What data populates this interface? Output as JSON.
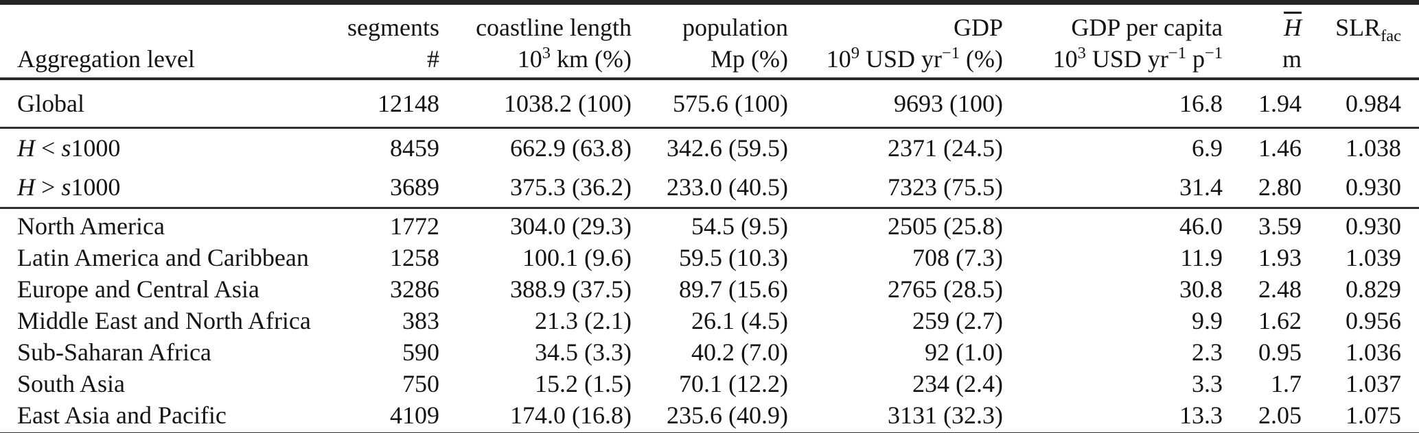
{
  "table": {
    "title": "Coastal aggregation statistics table",
    "header": {
      "top": [
        "",
        "segments",
        "coastline length",
        "population",
        "GDP",
        "GDP per capita",
        "<span class='ov'><i>H</i></span>",
        "SLR<sub>fac</sub>"
      ],
      "bottom": [
        "Aggregation level",
        "#",
        "10<sup>3</sup> km (%)",
        "Mp (%)",
        "10<sup>9</sup> USD yr<sup>−1</sup> (%)",
        "10<sup>3</sup> USD yr<sup>−1</sup> p<sup>−1</sup>",
        "m",
        ""
      ]
    },
    "columns": [
      "Aggregation level",
      "segments #",
      "coastline length 10^3 km (%)",
      "population Mp (%)",
      "GDP 10^9 USD yr^-1 (%)",
      "GDP per capita 10^3 USD yr^-1 p^-1",
      "mean elevation H (m)",
      "SLR factor"
    ],
    "sections": [
      {
        "name": "global",
        "rows": [
          {
            "label": "Global",
            "values": [
              "12148",
              "1038.2 (100)",
              "575.6 (100)",
              "9693 (100)",
              "16.8",
              "1.94",
              "0.984"
            ]
          }
        ]
      },
      {
        "name": "elevation-split",
        "rows": [
          {
            "label": "H < s1000",
            "label_html": "<i>H</i> &lt; <i>s</i>1000",
            "values": [
              "8459",
              "662.9 (63.8)",
              "342.6 (59.5)",
              "2371 (24.5)",
              "6.9",
              "1.46",
              "1.038"
            ]
          },
          {
            "label": "H > s1000",
            "label_html": "<i>H</i> &gt; <i>s</i>1000",
            "values": [
              "3689",
              "375.3 (36.2)",
              "233.0 (40.5)",
              "7323 (75.5)",
              "31.4",
              "2.80",
              "0.930"
            ]
          }
        ]
      },
      {
        "name": "regions",
        "rows": [
          {
            "label": "North America",
            "values": [
              "1772",
              "304.0 (29.3)",
              "54.5 (9.5)",
              "2505 (25.8)",
              "46.0",
              "3.59",
              "0.930"
            ]
          },
          {
            "label": "Latin America and Caribbean",
            "values": [
              "1258",
              "100.1 (9.6)",
              "59.5 (10.3)",
              "708 (7.3)",
              "11.9",
              "1.93",
              "1.039"
            ]
          },
          {
            "label": "Europe and Central Asia",
            "values": [
              "3286",
              "388.9 (37.5)",
              "89.7 (15.6)",
              "2765 (28.5)",
              "30.8",
              "2.48",
              "0.829"
            ]
          },
          {
            "label": "Middle East and North Africa",
            "values": [
              "383",
              "21.3 (2.1)",
              "26.1 (4.5)",
              "259 (2.7)",
              "9.9",
              "1.62",
              "0.956"
            ]
          },
          {
            "label": "Sub-Saharan Africa",
            "values": [
              "590",
              "34.5 (3.3)",
              "40.2 (7.0)",
              "92 (1.0)",
              "2.3",
              "0.95",
              "1.036"
            ]
          },
          {
            "label": "South Asia",
            "values": [
              "750",
              "15.2 (1.5)",
              "70.1 (12.2)",
              "234 (2.4)",
              "3.3",
              "1.7",
              "1.037"
            ]
          },
          {
            "label": "East Asia and Pacific",
            "values": [
              "4109",
              "174.0 (16.8)",
              "235.6 (40.9)",
              "3131 (32.3)",
              "13.3",
              "2.05",
              "1.075"
            ]
          }
        ]
      }
    ]
  }
}
